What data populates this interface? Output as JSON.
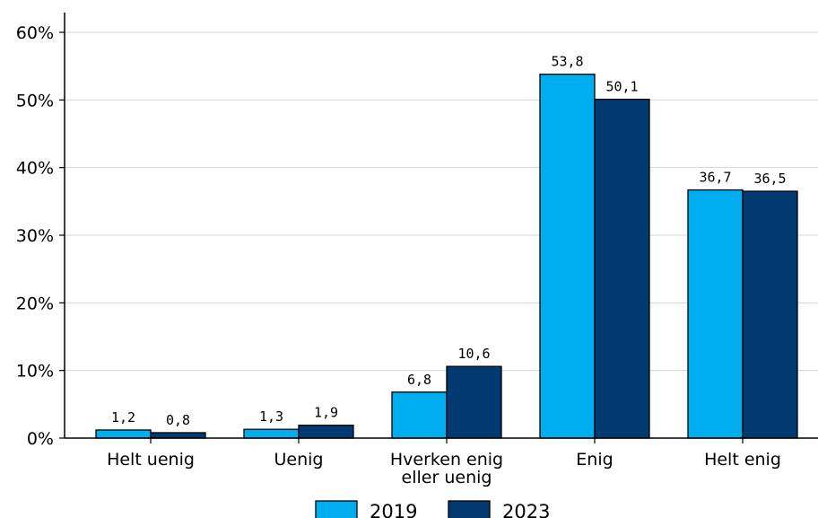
{
  "chart_data": {
    "type": "bar",
    "categories": [
      [
        "Helt uenig"
      ],
      [
        "Uenig"
      ],
      [
        "Hverken enig",
        "eller uenig"
      ],
      [
        "Enig"
      ],
      [
        "Helt enig"
      ]
    ],
    "series": [
      {
        "name": "2019",
        "values": [
          1.2,
          1.3,
          6.8,
          53.8,
          36.7
        ],
        "color": "#00aeef",
        "labels": [
          "1,2",
          "1,3",
          "6,8",
          "53,8",
          "36,7"
        ]
      },
      {
        "name": "2023",
        "values": [
          0.8,
          1.9,
          10.6,
          50.1,
          36.5
        ],
        "color": "#003a70",
        "labels": [
          "0,8",
          "1,9",
          "10,6",
          "50,1",
          "36,5"
        ]
      }
    ],
    "y_ticks": [
      "0%",
      "10%",
      "20%",
      "30%",
      "40%",
      "50%",
      "60%"
    ],
    "ylim": [
      0,
      60
    ],
    "grid": true,
    "legend_position": "bottom"
  }
}
